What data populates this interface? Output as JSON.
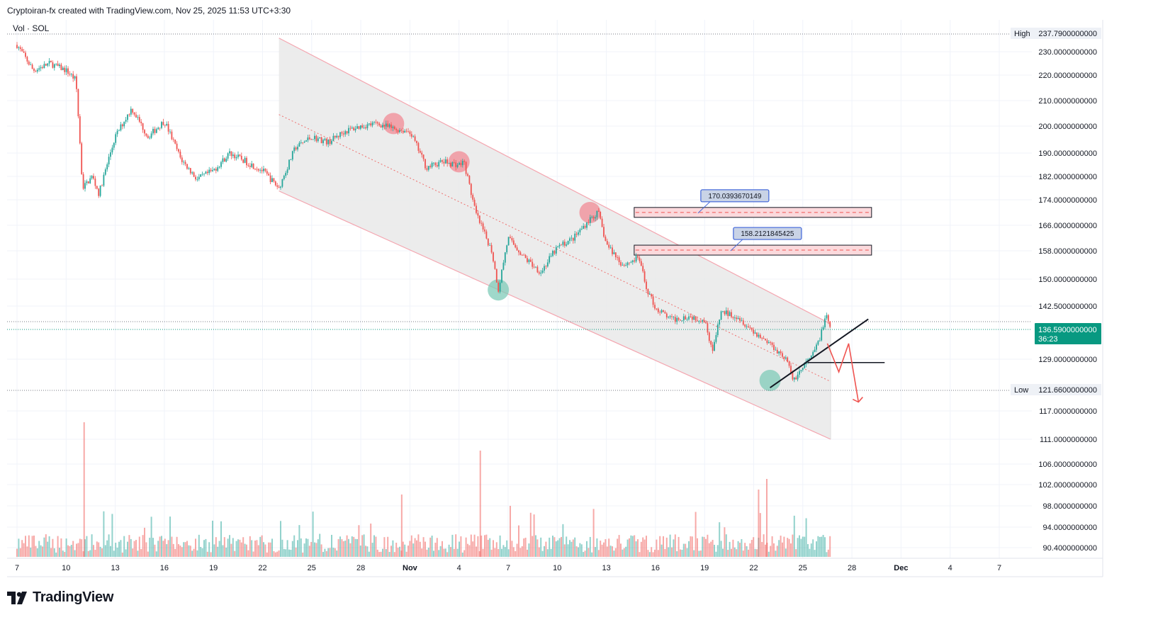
{
  "header": {
    "text": "Cryptoiran-fx created with TradingView.com, Nov 25, 2025 11:53 UTC+3:30"
  },
  "volume_label": "Vol · SOL",
  "brand": {
    "name": "TradingView",
    "icon": "tradingview-logo-icon"
  },
  "colors": {
    "up": "#26a69a",
    "down": "#ef5350",
    "channel_fill": "#e9e9e9",
    "channel_line": "#f4a6b0",
    "price_tag": "#089981",
    "zone_fill": "#fbd9dc",
    "label_fill": "#c9d3e6",
    "label_border": "#3d63d9"
  },
  "price_tag": {
    "value": "136.5900000000",
    "countdown": "36:23"
  },
  "high": {
    "label": "High",
    "value": "237.7900000000"
  },
  "low": {
    "label": "Low",
    "value": "121.6600000000"
  },
  "annotations": {
    "label_upper": "170.0393670149",
    "label_lower": "158.2121845425"
  },
  "chart_data": {
    "type": "candlestick",
    "symbol": "SOL",
    "y_ticks": [
      "230.0000000000",
      "220.0000000000",
      "210.0000000000",
      "200.0000000000",
      "190.0000000000",
      "182.0000000000",
      "174.0000000000",
      "166.0000000000",
      "158.0000000000",
      "150.0000000000",
      "142.5000000000",
      "129.0000000000",
      "117.0000000000",
      "111.0000000000",
      "106.0000000000",
      "102.0000000000",
      "98.0000000000",
      "94.0000000000",
      "90.4000000000"
    ],
    "x_ticks": [
      "7",
      "10",
      "13",
      "16",
      "19",
      "22",
      "25",
      "28",
      "Nov",
      "4",
      "7",
      "10",
      "13",
      "16",
      "19",
      "22",
      "25",
      "28",
      "Dec",
      "4",
      "7"
    ],
    "price_path": [
      [
        "Oct 7",
        233
      ],
      [
        "Oct 8",
        222
      ],
      [
        "Oct 9",
        225
      ],
      [
        "Oct 10",
        222
      ],
      [
        "Oct 10.6",
        218
      ],
      [
        "Oct 11",
        178
      ],
      [
        "Oct 11.6",
        182
      ],
      [
        "Oct 12",
        176
      ],
      [
        "Oct 13",
        196
      ],
      [
        "Oct 14",
        207
      ],
      [
        "Oct 15",
        196
      ],
      [
        "Oct 16",
        202
      ],
      [
        "Oct 17",
        188
      ],
      [
        "Oct 18",
        181
      ],
      [
        "Oct 19",
        184
      ],
      [
        "Oct 20",
        190
      ],
      [
        "Oct 21",
        187
      ],
      [
        "Oct 22",
        184
      ],
      [
        "Oct 23",
        178
      ],
      [
        "Oct 24",
        192
      ],
      [
        "Oct 25",
        196
      ],
      [
        "Oct 26",
        194
      ],
      [
        "Oct 27",
        198
      ],
      [
        "Oct 28",
        200
      ],
      [
        "Oct 29",
        201
      ],
      [
        "Oct 30",
        199
      ],
      [
        "Oct 31",
        198
      ],
      [
        "Nov 1",
        185
      ],
      [
        "Nov 2",
        187
      ],
      [
        "Nov 3",
        186
      ],
      [
        "Nov 3.3",
        187
      ],
      [
        "Nov 4",
        170
      ],
      [
        "Nov 5",
        158
      ],
      [
        "Nov 5.4",
        147
      ],
      [
        "Nov 6",
        162
      ],
      [
        "Nov 7",
        156
      ],
      [
        "Nov 8",
        152
      ],
      [
        "Nov 9",
        159
      ],
      [
        "Nov 10",
        162
      ],
      [
        "Nov 11",
        168
      ],
      [
        "Nov 11.5",
        170
      ],
      [
        "Nov 12",
        160
      ],
      [
        "Nov 13",
        154
      ],
      [
        "Nov 14",
        156
      ],
      [
        "Nov 14.4",
        148
      ],
      [
        "Nov 15",
        142
      ],
      [
        "Nov 16",
        139
      ],
      [
        "Nov 17",
        140
      ],
      [
        "Nov 18",
        139
      ],
      [
        "Nov 18.5",
        131
      ],
      [
        "Nov 19",
        141
      ],
      [
        "Nov 20",
        140
      ],
      [
        "Nov 21",
        136
      ],
      [
        "Nov 22",
        133
      ],
      [
        "Nov 23",
        129
      ],
      [
        "Nov 23.4",
        124
      ],
      [
        "Nov 24",
        127
      ],
      [
        "Nov 24.6",
        130
      ],
      [
        "Nov 25",
        134
      ],
      [
        "Nov 25.4",
        140
      ],
      [
        "Nov 25.7",
        136.59
      ]
    ],
    "series": [
      {
        "name": "SOL",
        "last": 136.59
      },
      {
        "name": "Vol",
        "values": "volume histogram"
      }
    ],
    "channel": {
      "upper_start": [
        "Oct 23",
        236
      ],
      "upper_end": [
        "Nov 25.7",
        138
      ],
      "lower_start": [
        "Oct 23",
        177
      ],
      "lower_end": [
        "Nov 25.7",
        111
      ]
    },
    "zones": [
      {
        "price": 170.04
      },
      {
        "price": 158.21
      }
    ],
    "markers": [
      {
        "date": "Oct 30",
        "price": 201,
        "color": "red"
      },
      {
        "date": "Nov 3",
        "price": 187,
        "color": "red"
      },
      {
        "date": "Nov 11",
        "price": 170,
        "color": "red"
      },
      {
        "date": "Nov 5.4",
        "price": 147,
        "color": "green"
      },
      {
        "date": "Nov 22",
        "price": 124,
        "color": "green"
      }
    ]
  }
}
